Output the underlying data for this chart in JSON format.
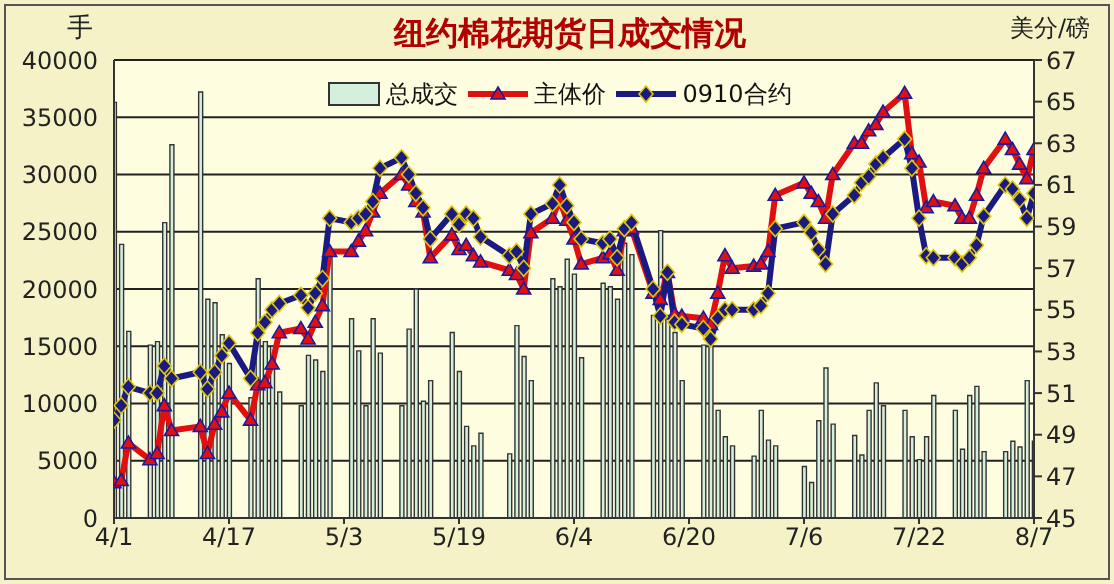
{
  "chart_data": {
    "type": "bar",
    "title": "纽约棉花期货日成交情况",
    "ylabel": "手",
    "y2label": "美分/磅",
    "x": [
      "--04-01",
      "--04-02",
      "--04-03",
      "--04-06",
      "--04-07",
      "--04-08",
      "--04-09",
      "--04-13",
      "--04-14",
      "--04-15",
      "--04-16",
      "--04-17",
      "--04-20",
      "--04-21",
      "--04-22",
      "--04-23",
      "--04-24",
      "--04-27",
      "--04-28",
      "--04-29",
      "--04-30",
      "--05-01",
      "--05-04",
      "--05-05",
      "--05-06",
      "--05-07",
      "--05-08",
      "--05-11",
      "--05-12",
      "--05-13",
      "--05-14",
      "--05-15",
      "--05-18",
      "--05-19",
      "--05-20",
      "--05-21",
      "--05-22",
      "--05-26",
      "--05-27",
      "--05-28",
      "--05-29",
      "--06-01",
      "--06-02",
      "--06-03",
      "--06-04",
      "--06-05",
      "--06-08",
      "--06-09",
      "--06-10",
      "--06-11",
      "--06-12",
      "--06-15",
      "--06-16",
      "--06-17",
      "--06-18",
      "--06-19",
      "--06-22",
      "--06-23",
      "--06-24",
      "--06-25",
      "--06-26",
      "--06-29",
      "--06-30",
      "--07-01",
      "--07-02",
      "--07-06",
      "--07-07",
      "--07-08",
      "--07-09",
      "--07-10",
      "--07-13",
      "--07-14",
      "--07-15",
      "--07-16",
      "--07-17",
      "--07-20",
      "--07-21",
      "--07-22",
      "--07-23",
      "--07-24",
      "--07-27",
      "--07-28",
      "--07-29",
      "--07-30",
      "--07-31",
      "--08-03",
      "--08-04",
      "--08-05",
      "--08-06",
      "--08-07"
    ],
    "series": [
      {
        "name": "总成交",
        "color": "#d4f0dc",
        "values": [
          36300,
          23900,
          16300,
          15100,
          15400,
          25800,
          32600,
          37200,
          19100,
          18800,
          16000,
          13500,
          10500,
          20900,
          15400,
          15000,
          11000,
          9800,
          14200,
          13800,
          12800,
          22800,
          17400,
          14600,
          9800,
          17400,
          14400,
          9800,
          16500,
          20000,
          10200,
          12000,
          16200,
          12800,
          8000,
          6300,
          7400,
          5600,
          16800,
          14100,
          12000,
          20900,
          20200,
          22600,
          21300,
          14000,
          20500,
          20200,
          19100,
          24000,
          23000,
          17700,
          25100,
          17700,
          16200,
          12000,
          15100,
          15100,
          9400,
          7100,
          6300,
          5400,
          9400,
          6800,
          6300,
          4500,
          3100,
          8500,
          13100,
          8200,
          7200,
          5500,
          9400,
          11800,
          9800,
          9400,
          7100,
          5100,
          7100,
          10700,
          9400,
          6000,
          10700,
          11500,
          5800,
          5800,
          6700,
          6200,
          12000,
          6700
        ]
      },
      {
        "name": "主体价",
        "type": "line",
        "axis": "y2",
        "color": "#e01010",
        "marker": "triangle",
        "values": [
          46.7,
          46.8,
          48.6,
          47.8,
          48.1,
          50.4,
          49.2,
          49.4,
          48.1,
          49.5,
          50.1,
          51.0,
          49.7,
          51.4,
          51.5,
          52.4,
          53.9,
          54.1,
          53.6,
          54.4,
          55.2,
          57.8,
          57.8,
          58.3,
          58.8,
          59.7,
          60.6,
          61.5,
          61.0,
          60.2,
          59.7,
          57.5,
          58.6,
          57.9,
          58.1,
          57.6,
          57.3,
          56.9,
          56.7,
          56.0,
          58.7,
          59.4,
          60.3,
          59.3,
          58.4,
          57.2,
          57.5,
          57.7,
          56.9,
          58.8,
          58.9,
          55.8,
          55.5,
          56.8,
          54.8,
          54.7,
          54.6,
          54.3,
          55.8,
          57.6,
          57.0,
          57.1,
          57.2,
          57.8,
          60.5,
          61.1,
          60.6,
          60.2,
          59.4,
          61.5,
          63.0,
          63.0,
          63.6,
          63.9,
          64.5,
          65.4,
          62.5,
          62.1,
          59.9,
          60.2,
          60.0,
          59.4,
          59.4,
          60.5,
          61.8,
          63.2,
          62.7,
          62.0,
          61.3,
          62.7
        ]
      },
      {
        "name": "0910合约",
        "type": "line",
        "axis": "y2",
        "color": "#1a1a80",
        "marker": "diamond",
        "values": [
          49.7,
          50.4,
          51.3,
          51.0,
          51.0,
          52.3,
          51.7,
          52.0,
          51.2,
          52.0,
          52.8,
          53.4,
          51.7,
          53.9,
          54.4,
          55.0,
          55.3,
          55.7,
          55.1,
          55.8,
          56.5,
          59.4,
          59.2,
          59.4,
          59.6,
          60.2,
          61.8,
          62.3,
          61.5,
          60.6,
          59.9,
          58.4,
          59.6,
          59.1,
          59.6,
          59.4,
          58.5,
          57.6,
          57.8,
          57.0,
          59.6,
          60.1,
          61.0,
          60.0,
          59.2,
          58.4,
          58.2,
          58.4,
          57.5,
          58.9,
          59.2,
          56.0,
          54.7,
          56.8,
          54.4,
          54.3,
          54.1,
          53.6,
          54.6,
          55.0,
          55.0,
          55.0,
          55.2,
          55.8,
          58.9,
          59.2,
          58.7,
          57.9,
          57.2,
          59.6,
          60.5,
          61.1,
          61.4,
          62.0,
          62.3,
          63.2,
          61.8,
          59.4,
          57.6,
          57.5,
          57.5,
          57.2,
          57.5,
          58.1,
          59.5,
          61.0,
          60.8,
          60.3,
          59.4,
          60.6
        ]
      }
    ],
    "xlim": [
      "--04-01",
      "--08-07"
    ],
    "xticks": [
      {
        "value": "--04-01",
        "label": "4/1"
      },
      {
        "value": "--04-17",
        "label": "4/17"
      },
      {
        "value": "--05-03",
        "label": "5/3"
      },
      {
        "value": "--05-19",
        "label": "5/19"
      },
      {
        "value": "--06-04",
        "label": "6/4"
      },
      {
        "value": "--06-20",
        "label": "6/20"
      },
      {
        "value": "--07-06",
        "label": "7/6"
      },
      {
        "value": "--07-22",
        "label": "7/22"
      },
      {
        "value": "--08-07",
        "label": "8/7"
      }
    ],
    "ylim": [
      0,
      40000
    ],
    "yticks": [
      0,
      5000,
      10000,
      15000,
      20000,
      25000,
      30000,
      35000,
      40000
    ],
    "y2lim": [
      45,
      67
    ],
    "y2ticks": [
      45,
      47,
      49,
      51,
      53,
      55,
      57,
      59,
      61,
      63,
      65,
      67
    ],
    "grid": "y",
    "legend": "top"
  }
}
